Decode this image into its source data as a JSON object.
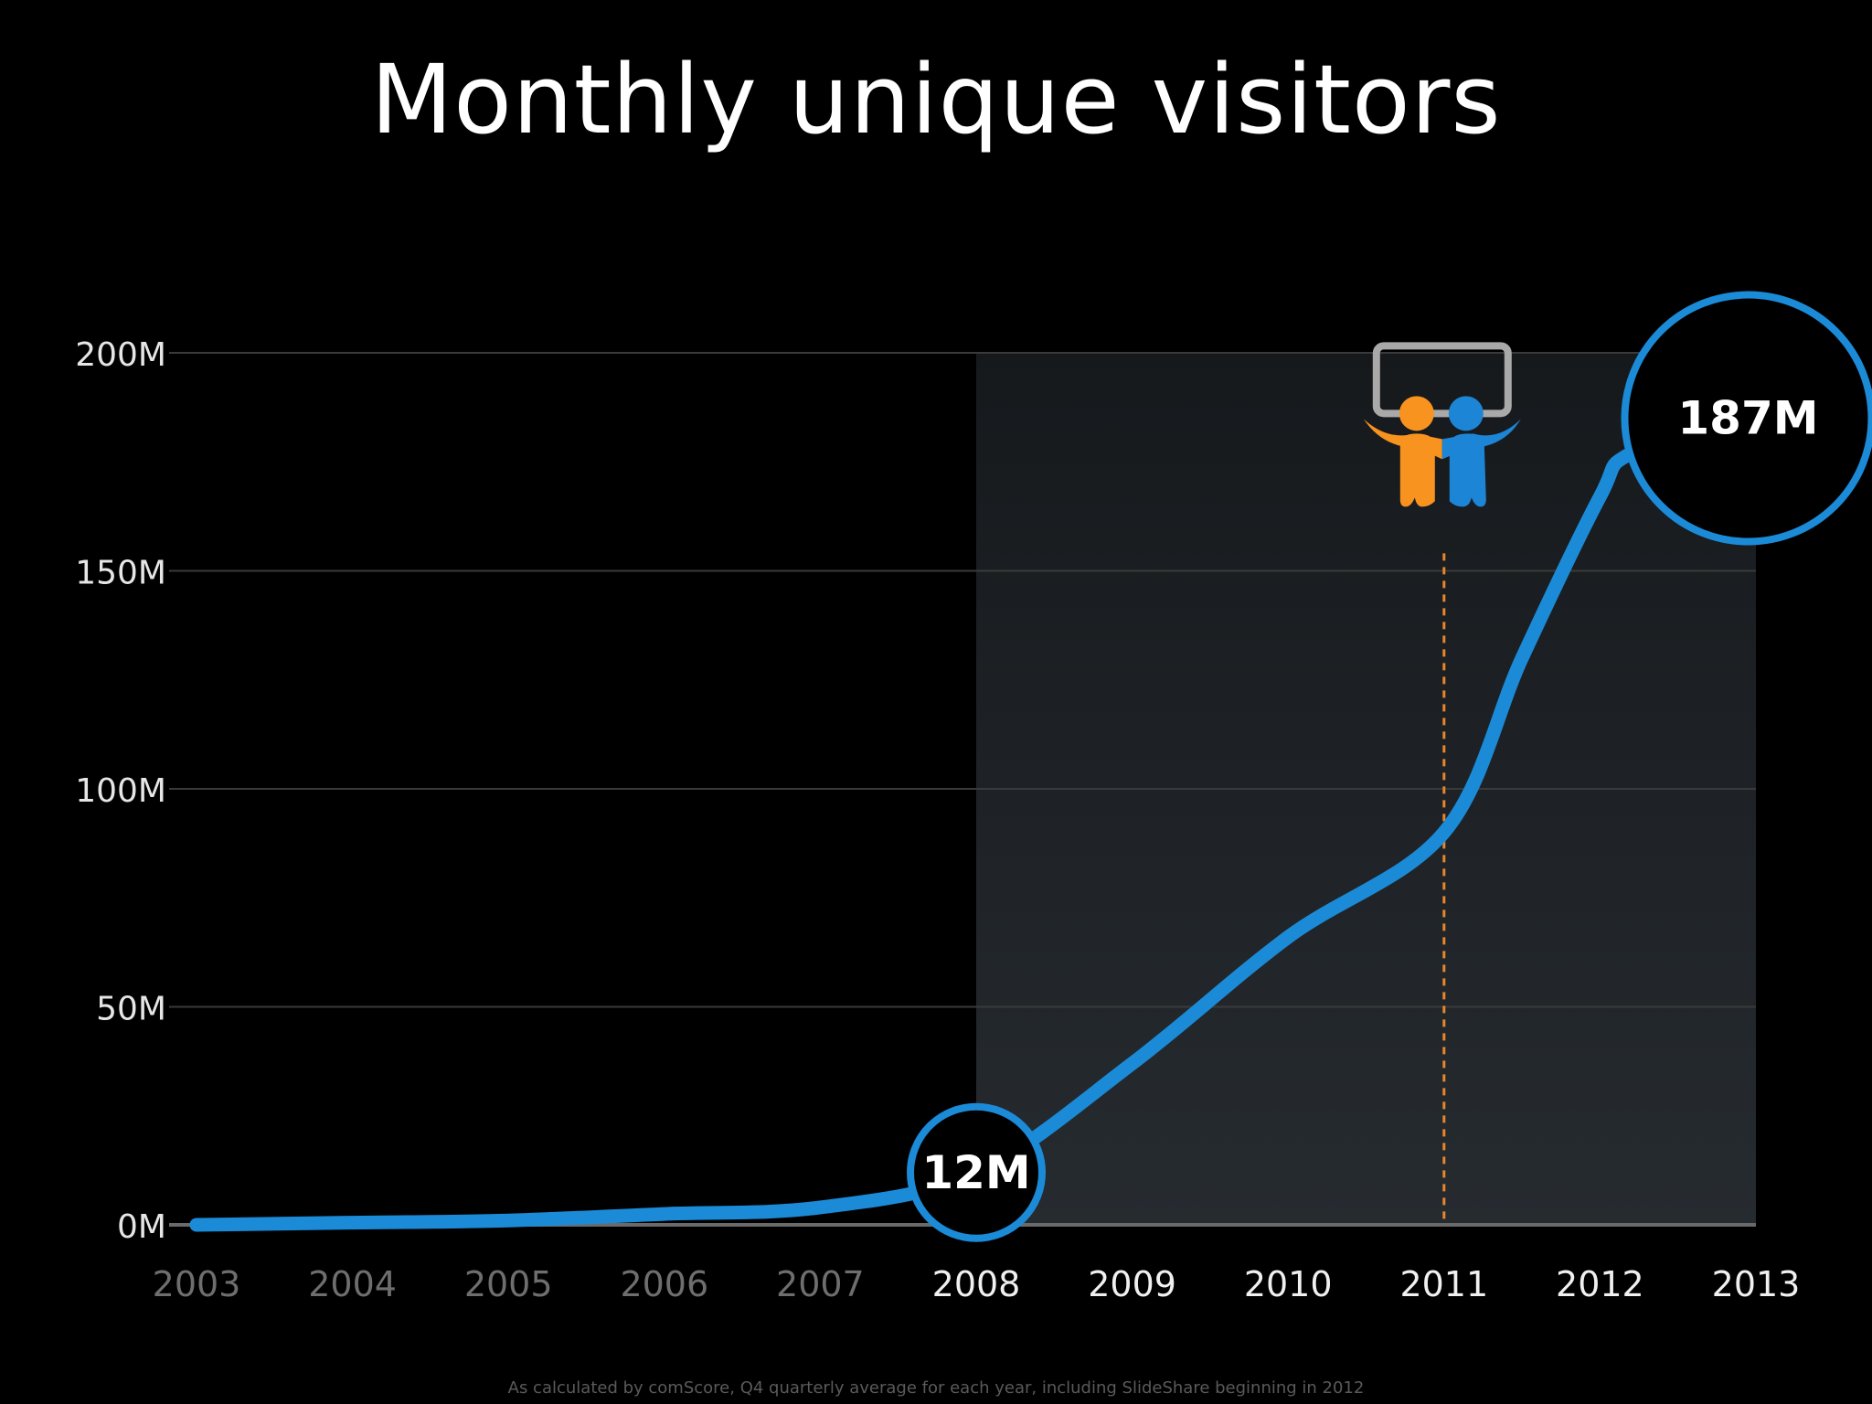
{
  "chart_data": {
    "type": "line",
    "title": "Monthly unique visitors",
    "xlabel": "",
    "ylabel": "",
    "x": [
      2003,
      2004,
      2005,
      2006,
      2007,
      2008,
      2009,
      2010,
      2011,
      2012,
      2013
    ],
    "x_tick_labels": [
      "2003",
      "2004",
      "2005",
      "2006",
      "2007",
      "2008",
      "2009",
      "2010",
      "2011",
      "2012",
      "2013"
    ],
    "highlighted_x_tick_labels": [
      "2008",
      "2009",
      "2010",
      "2011",
      "2012",
      "2013"
    ],
    "y_tick_values": [
      0,
      50,
      100,
      150,
      200
    ],
    "y_tick_labels": [
      "0M",
      "50M",
      "100M",
      "150M",
      "200M"
    ],
    "ylim": [
      0,
      200
    ],
    "xlim": [
      2003,
      2013
    ],
    "grid": true,
    "series": [
      {
        "name": "Monthly unique visitors",
        "unit": "M",
        "points": [
          [
            2003,
            0
          ],
          [
            2004,
            0.5
          ],
          [
            2005,
            1
          ],
          [
            2006,
            2.5
          ],
          [
            2007,
            4
          ],
          [
            2008,
            12
          ],
          [
            2009,
            37
          ],
          [
            2010,
            66
          ],
          [
            2011,
            90
          ],
          [
            2011.5,
            130
          ],
          [
            2012,
            167
          ],
          [
            2012.2,
            177
          ],
          [
            2013,
            187
          ]
        ]
      }
    ],
    "shaded_region": {
      "x_start": 2008,
      "x_end": 2013
    },
    "marker_line": {
      "x": 2011,
      "note": "SlideShare logo"
    },
    "annotations": [
      {
        "x": 2008,
        "y": 12,
        "label": "12M"
      },
      {
        "x": 2012.95,
        "y": 185,
        "label": "187M"
      }
    ],
    "colors": {
      "line": "#1b8bd8",
      "grid": "#3a3a3a",
      "marker": "#e8862a",
      "shade": "#1e2226",
      "logo_orange": "#f7931e",
      "logo_blue": "#1d85d6"
    }
  },
  "footnote": "As calculated by comScore, Q4 quarterly average for each year, including SlideShare beginning in 2012"
}
